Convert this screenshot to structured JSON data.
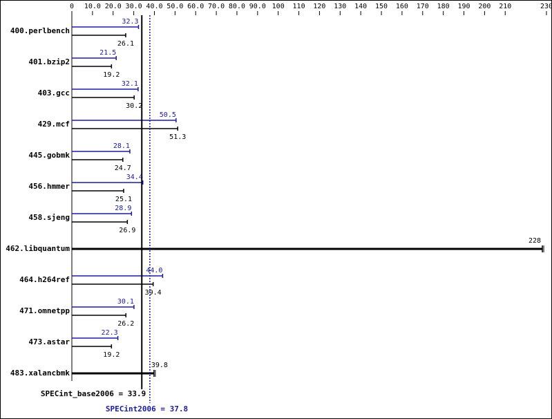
{
  "chart_data": {
    "type": "bar",
    "xlim": [
      0,
      230
    ],
    "x_ticks": [
      0,
      10.0,
      20.0,
      30.0,
      40.0,
      50.0,
      60.0,
      70.0,
      80.0,
      90.0,
      100,
      110,
      120,
      130,
      140,
      150,
      160,
      170,
      180,
      190,
      200,
      210,
      230
    ],
    "x_tick_labels": [
      "0",
      "10.0",
      "20.0",
      "30.0",
      "40.0",
      "50.0",
      "60.0",
      "70.0",
      "80.0",
      "90.0",
      "100",
      "110",
      "120",
      "130",
      "140",
      "150",
      "160",
      "170",
      "180",
      "190",
      "200",
      "210",
      "230"
    ],
    "categories": [
      "400.perlbench",
      "401.bzip2",
      "403.gcc",
      "429.mcf",
      "445.gobmk",
      "456.hmmer",
      "458.sjeng",
      "462.libquantum",
      "464.h264ref",
      "471.omnetpp",
      "473.astar",
      "483.xalancbmk"
    ],
    "series": [
      {
        "name": "SPECint2006",
        "color": "#1a1aa0",
        "values": [
          32.3,
          21.5,
          32.1,
          50.5,
          28.1,
          34.4,
          28.9,
          228,
          44.0,
          30.1,
          22.3,
          39.8
        ],
        "labels": [
          "32.3",
          "21.5",
          "32.1",
          "50.5",
          "28.1",
          "34.4",
          "28.9",
          "",
          "44.0",
          "30.1",
          "22.3",
          ""
        ]
      },
      {
        "name": "SPECint_base2006",
        "color": "#000000",
        "values": [
          26.1,
          19.2,
          30.2,
          51.3,
          24.7,
          25.1,
          26.9,
          228,
          39.4,
          26.2,
          19.2,
          39.8
        ],
        "labels": [
          "26.1",
          "19.2",
          "30.2",
          "51.3",
          "24.7",
          "25.1",
          "26.9",
          "228",
          "39.4",
          "26.2",
          "19.2",
          "39.8"
        ]
      }
    ],
    "merged_categories": [
      "462.libquantum",
      "483.xalancbmk"
    ],
    "reference_lines": [
      {
        "name": "SPECint_base2006",
        "value": 33.9,
        "label": "SPECint_base2006 = 33.9",
        "color": "#000000",
        "style": "solid"
      },
      {
        "name": "SPECint2006",
        "value": 37.8,
        "label": "SPECint2006 = 37.8",
        "color": "#1a1aa0",
        "style": "dotted"
      }
    ]
  }
}
